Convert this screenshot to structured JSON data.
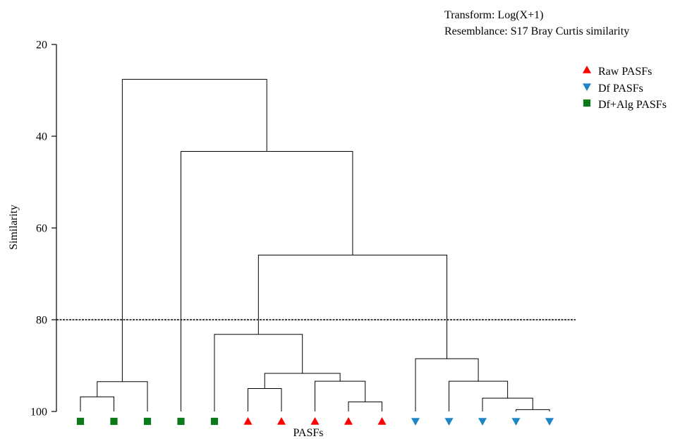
{
  "chart_data": {
    "type": "dendrogram",
    "title": "",
    "annotations": [
      "Transform: Log(X+1)",
      "Resemblance: S17 Bray Curtis similarity"
    ],
    "xlabel": "PASFs",
    "ylabel": "Similarity",
    "yticks": [
      20,
      40,
      60,
      80,
      100
    ],
    "ylim": [
      20,
      100
    ],
    "y_inverted": true,
    "cutoff_line": 80,
    "legend_position": "top-right",
    "legend": [
      {
        "label": "Raw PASFs",
        "marker": "triangle-up",
        "color": "#ff0000"
      },
      {
        "label": "Df PASFs",
        "marker": "triangle-down",
        "color": "#1f86c6"
      },
      {
        "label": "Df+Alg PASFs",
        "marker": "square",
        "color": "#0a7a1a"
      }
    ],
    "leaves": [
      {
        "group": "Df+Alg PASFs"
      },
      {
        "group": "Df+Alg PASFs"
      },
      {
        "group": "Df+Alg PASFs"
      },
      {
        "group": "Df+Alg PASFs"
      },
      {
        "group": "Df+Alg PASFs"
      },
      {
        "group": "Raw PASFs"
      },
      {
        "group": "Raw PASFs"
      },
      {
        "group": "Raw PASFs"
      },
      {
        "group": "Raw PASFs"
      },
      {
        "group": "Raw PASFs"
      },
      {
        "group": "Df PASFs"
      },
      {
        "group": "Df PASFs"
      },
      {
        "group": "Df PASFs"
      },
      {
        "group": "Df PASFs"
      },
      {
        "group": "Df PASFs"
      }
    ],
    "merges": [
      {
        "a": 0,
        "b": 1,
        "similarity": 96.8
      },
      {
        "a": 15,
        "b": 2,
        "similarity": 93.5
      },
      {
        "a": 5,
        "b": 6,
        "similarity": 95.0
      },
      {
        "a": 8,
        "b": 9,
        "similarity": 97.9
      },
      {
        "a": 7,
        "b": 18,
        "similarity": 93.4
      },
      {
        "a": 17,
        "b": 19,
        "similarity": 91.7
      },
      {
        "a": 4,
        "b": 20,
        "similarity": 83.2
      },
      {
        "a": 13,
        "b": 14,
        "similarity": 99.6
      },
      {
        "a": 12,
        "b": 22,
        "similarity": 97.1
      },
      {
        "a": 11,
        "b": 23,
        "similarity": 93.4
      },
      {
        "a": 10,
        "b": 24,
        "similarity": 88.5
      },
      {
        "a": 21,
        "b": 25,
        "similarity": 65.9
      },
      {
        "a": 3,
        "b": 26,
        "similarity": 43.3
      },
      {
        "a": 16,
        "b": 27,
        "similarity": 27.6
      }
    ]
  }
}
